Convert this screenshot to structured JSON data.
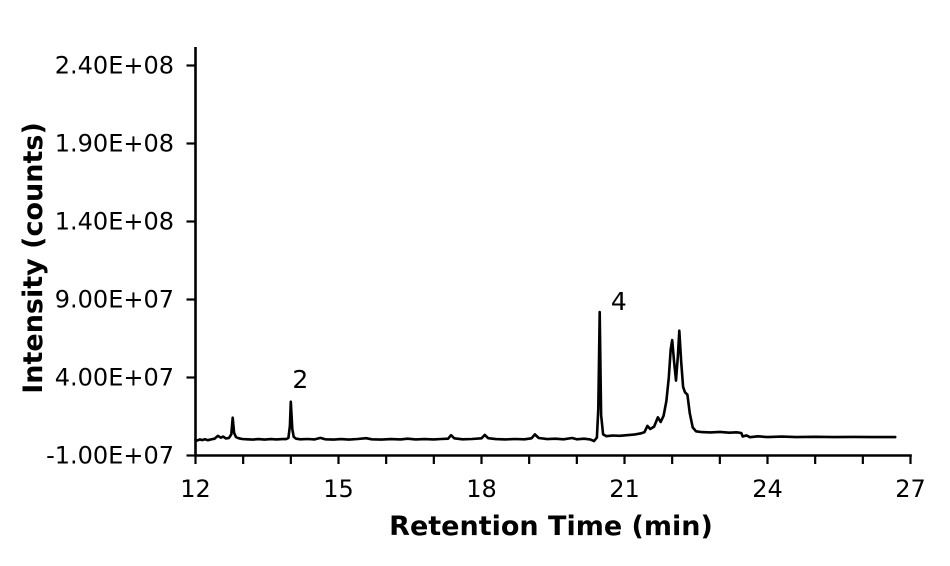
{
  "figure_title": "",
  "chart_data": {
    "type": "line",
    "title": "",
    "xlabel": "Retention Time (min)",
    "ylabel": "Intensity (counts)",
    "xlim": [
      12,
      27
    ],
    "ylim": [
      -10000000.0,
      240000000.0
    ],
    "grid": false,
    "legend": false,
    "background_color": "#ffffff",
    "line_color": "#000000",
    "axis_color": "#000000",
    "x_ticks": {
      "positions": [
        12,
        13,
        14,
        15,
        16,
        17,
        18,
        19,
        20,
        21,
        22,
        23,
        24,
        25,
        26,
        27
      ],
      "labeled_positions": [
        12,
        15,
        18,
        21,
        24,
        27
      ],
      "labels": [
        "12",
        "15",
        "18",
        "21",
        "24",
        "27"
      ]
    },
    "y_ticks": {
      "values": [
        240000000.0,
        190000000.0,
        140000000.0,
        90000000.0,
        40000000.0,
        -10000000.0
      ],
      "labels": [
        "2.40E+08",
        "1.90E+08",
        "1.40E+08",
        "9.00E+07",
        "4.00E+07",
        "-1.00E+07"
      ]
    },
    "annotations": [
      {
        "text": "2",
        "t": 14.2,
        "v": 39000000.0
      },
      {
        "text": "4",
        "t": 20.88,
        "v": 89000000.0
      }
    ],
    "peaks": [
      {
        "label": "",
        "retention_time": 12.78,
        "intensity": 14200000.0
      },
      {
        "label": "2",
        "retention_time": 14.0,
        "intensity": 24500000.0
      },
      {
        "label": "4",
        "retention_time": 20.48,
        "intensity": 82000000.0
      },
      {
        "label": "",
        "retention_time": 22.0,
        "intensity": 64000000.0
      },
      {
        "label": "",
        "retention_time": 22.15,
        "intensity": 70000000.0
      }
    ],
    "series": [
      {
        "name": "chromatogram-trace",
        "points": [
          [
            12.0,
            200000.0
          ],
          [
            12.04,
            -400000.0
          ],
          [
            12.09,
            300000.0
          ],
          [
            12.14,
            -100000.0
          ],
          [
            12.2,
            400000.0
          ],
          [
            12.26,
            -200000.0
          ],
          [
            12.33,
            300000.0
          ],
          [
            12.4,
            800000.0
          ],
          [
            12.47,
            2600000.0
          ],
          [
            12.53,
            1400000.0
          ],
          [
            12.58,
            2100000.0
          ],
          [
            12.64,
            900000.0
          ],
          [
            12.7,
            1200000.0
          ],
          [
            12.75,
            3500000.0
          ],
          [
            12.78,
            14200000.0
          ],
          [
            12.81,
            4500000.0
          ],
          [
            12.85,
            1800000.0
          ],
          [
            12.91,
            1000000.0
          ],
          [
            12.98,
            600000.0
          ],
          [
            13.08,
            400000.0
          ],
          [
            13.2,
            200000.0
          ],
          [
            13.32,
            500000.0
          ],
          [
            13.45,
            200000.0
          ],
          [
            13.58,
            500000.0
          ],
          [
            13.7,
            300000.0
          ],
          [
            13.82,
            500000.0
          ],
          [
            13.9,
            500000.0
          ],
          [
            13.95,
            1200000.0
          ],
          [
            13.98,
            9000000.0
          ],
          [
            14.0,
            24500000.0
          ],
          [
            14.03,
            7000000.0
          ],
          [
            14.06,
            2000000.0
          ],
          [
            14.11,
            800000.0
          ],
          [
            14.2,
            400000.0
          ],
          [
            14.35,
            600000.0
          ],
          [
            14.5,
            300000.0
          ],
          [
            14.62,
            1300000.0
          ],
          [
            14.72,
            400000.0
          ],
          [
            14.9,
            200000.0
          ],
          [
            15.05,
            500000.0
          ],
          [
            15.22,
            200000.0
          ],
          [
            15.4,
            600000.0
          ],
          [
            15.58,
            1100000.0
          ],
          [
            15.7,
            400000.0
          ],
          [
            15.9,
            200000.0
          ],
          [
            16.1,
            500000.0
          ],
          [
            16.3,
            300000.0
          ],
          [
            16.45,
            800000.0
          ],
          [
            16.62,
            300000.0
          ],
          [
            16.8,
            500000.0
          ],
          [
            17.0,
            300000.0
          ],
          [
            17.15,
            600000.0
          ],
          [
            17.3,
            800000.0
          ],
          [
            17.36,
            3000000.0
          ],
          [
            17.43,
            1000000.0
          ],
          [
            17.6,
            400000.0
          ],
          [
            17.8,
            600000.0
          ],
          [
            18.0,
            1000000.0
          ],
          [
            18.07,
            3200000.0
          ],
          [
            18.14,
            1100000.0
          ],
          [
            18.3,
            500000.0
          ],
          [
            18.5,
            300000.0
          ],
          [
            18.7,
            600000.0
          ],
          [
            18.9,
            400000.0
          ],
          [
            19.05,
            1000000.0
          ],
          [
            19.12,
            3500000.0
          ],
          [
            19.2,
            1200000.0
          ],
          [
            19.38,
            500000.0
          ],
          [
            19.55,
            800000.0
          ],
          [
            19.72,
            400000.0
          ],
          [
            19.9,
            1200000.0
          ],
          [
            20.0,
            400000.0
          ],
          [
            20.15,
            800000.0
          ],
          [
            20.28,
            300000.0
          ],
          [
            20.36,
            -800000.0
          ],
          [
            20.42,
            1500000.0
          ],
          [
            20.45,
            20000000.0
          ],
          [
            20.48,
            82000000.0
          ],
          [
            20.51,
            16000000.0
          ],
          [
            20.55,
            3500000.0
          ],
          [
            20.62,
            2400000.0
          ],
          [
            20.75,
            2800000.0
          ],
          [
            20.9,
            2600000.0
          ],
          [
            21.05,
            3000000.0
          ],
          [
            21.2,
            3400000.0
          ],
          [
            21.35,
            4200000.0
          ],
          [
            21.42,
            5000000.0
          ],
          [
            21.48,
            9000000.0
          ],
          [
            21.54,
            7000000.0
          ],
          [
            21.62,
            8500000.0
          ],
          [
            21.7,
            14500000.0
          ],
          [
            21.76,
            11500000.0
          ],
          [
            21.82,
            15500000.0
          ],
          [
            21.88,
            25000000.0
          ],
          [
            21.93,
            40000000.0
          ],
          [
            21.97,
            58000000.0
          ],
          [
            22.0,
            64000000.0
          ],
          [
            22.04,
            50000000.0
          ],
          [
            22.08,
            38000000.0
          ],
          [
            22.12,
            54000000.0
          ],
          [
            22.15,
            70000000.0
          ],
          [
            22.19,
            50000000.0
          ],
          [
            22.23,
            34000000.0
          ],
          [
            22.27,
            30500000.0
          ],
          [
            22.32,
            29000000.0
          ],
          [
            22.37,
            17000000.0
          ],
          [
            22.43,
            8000000.0
          ],
          [
            22.5,
            5500000.0
          ],
          [
            22.62,
            5000000.0
          ],
          [
            22.8,
            4800000.0
          ],
          [
            23.0,
            5100000.0
          ],
          [
            23.2,
            4600000.0
          ],
          [
            23.35,
            4900000.0
          ],
          [
            23.45,
            4400000.0
          ],
          [
            23.48,
            2200000.0
          ],
          [
            23.56,
            2900000.0
          ],
          [
            23.63,
            1700000.0
          ],
          [
            23.8,
            2300000.0
          ],
          [
            24.0,
            1800000.0
          ],
          [
            24.3,
            2100000.0
          ],
          [
            24.6,
            1800000.0
          ],
          [
            25.0,
            2000000.0
          ],
          [
            25.4,
            1800000.0
          ],
          [
            25.8,
            1900000.0
          ],
          [
            26.2,
            1800000.0
          ],
          [
            26.68,
            1800000.0
          ]
        ]
      }
    ]
  }
}
